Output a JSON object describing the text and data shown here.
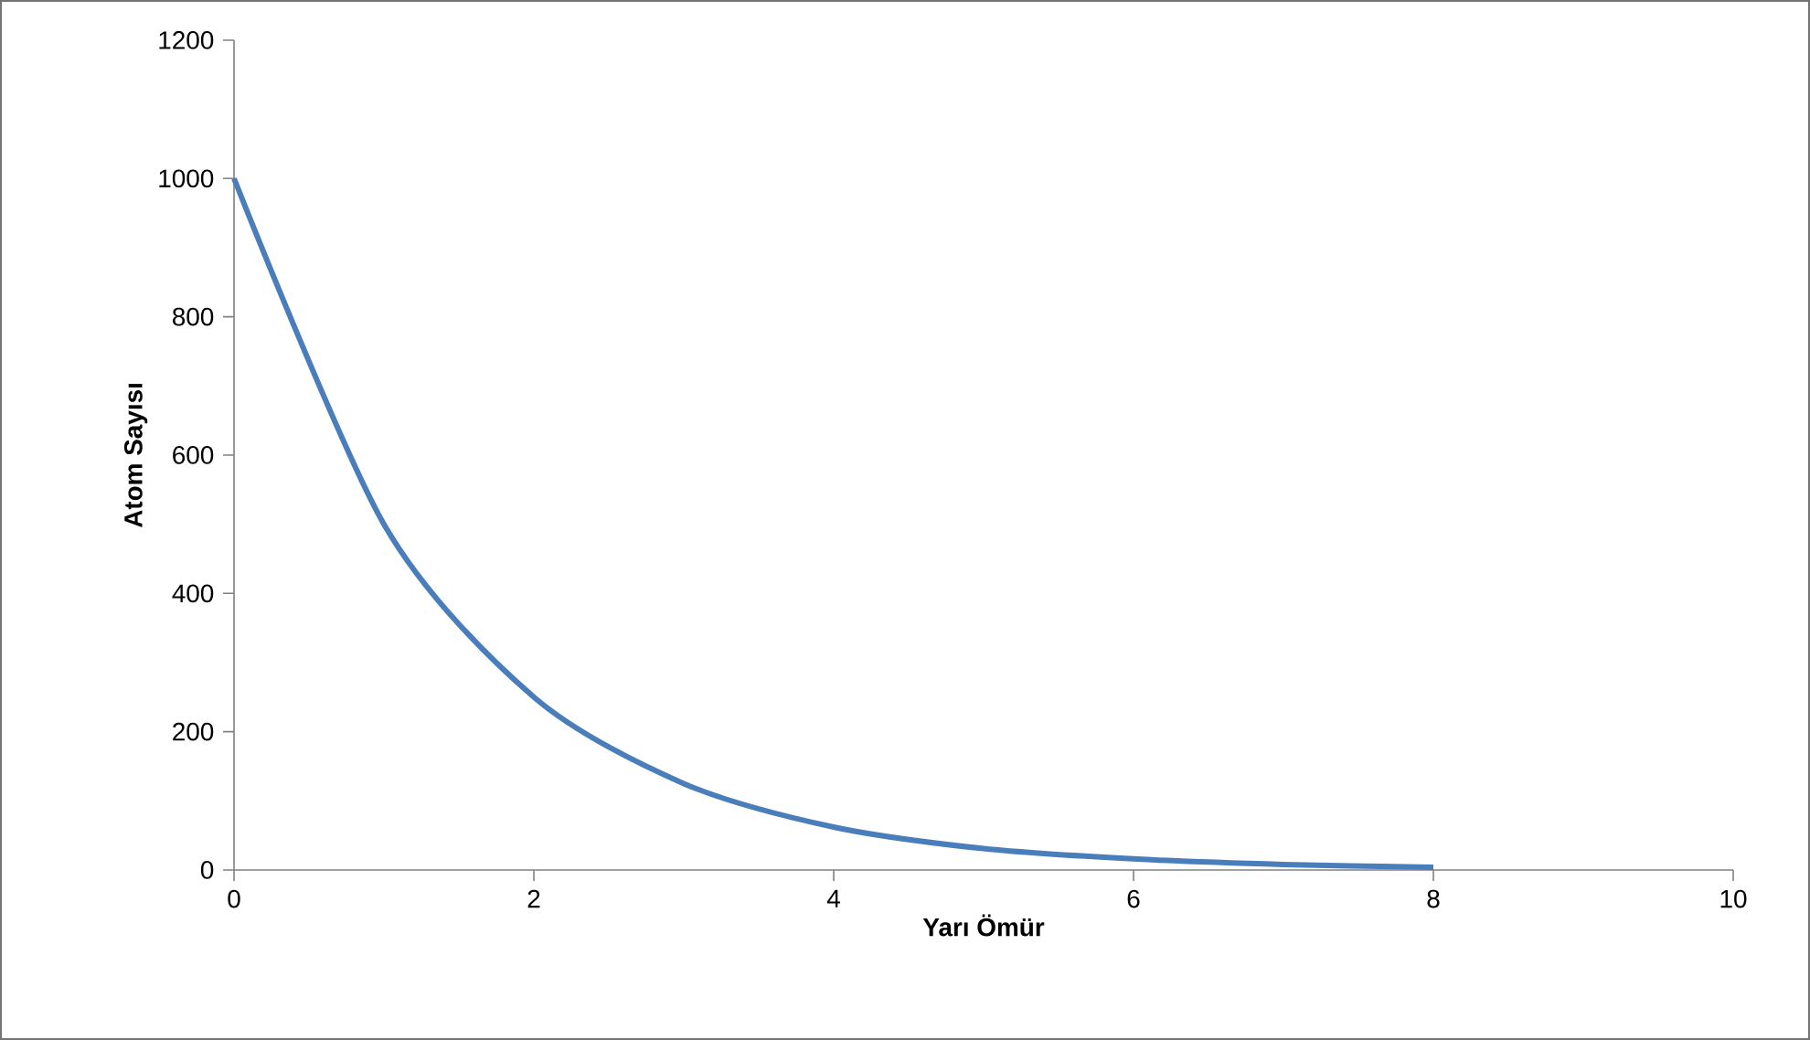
{
  "chart_data": {
    "type": "line",
    "xlabel": "Yarı Ömür",
    "ylabel": "Atom Sayısı",
    "x": [
      0,
      1,
      2,
      3,
      4,
      5,
      6,
      7,
      8
    ],
    "series": [
      {
        "color": "#4a7ebb",
        "values": [
          1000,
          500,
          250,
          125,
          62,
          31,
          16,
          8,
          4
        ]
      }
    ],
    "xlim": [
      0,
      10
    ],
    "ylim": [
      0,
      1200
    ],
    "xticks": [
      0,
      2,
      4,
      6,
      8,
      10
    ],
    "yticks": [
      0,
      200,
      400,
      600,
      800,
      1000,
      1200
    ]
  }
}
